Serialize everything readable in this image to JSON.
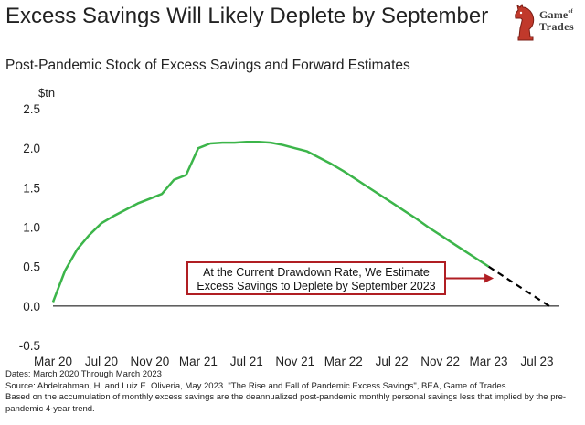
{
  "header": {
    "title": "Excess Savings Will Likely Deplete by September",
    "logo_line1": "Game",
    "logo_of": "of",
    "logo_line2": "Trades"
  },
  "chart_data": {
    "type": "line",
    "title": "Post-Pandemic Stock of Excess Savings and Forward Estimates",
    "ylabel": "$tn",
    "xlabel": "",
    "ylim": [
      -0.5,
      2.5
    ],
    "yticks": [
      -0.5,
      0.0,
      0.5,
      1.0,
      1.5,
      2.0,
      2.5
    ],
    "ytick_labels": [
      "-0.5",
      "0.0",
      "0.5",
      "1.0",
      "1.5",
      "2.0",
      "2.5"
    ],
    "xlim": [
      0,
      42
    ],
    "xticks": [
      0,
      4,
      8,
      12,
      16,
      20,
      24,
      28,
      32,
      36,
      40
    ],
    "xtick_labels": [
      "Mar 20",
      "Jul 20",
      "Nov 20",
      "Mar 21",
      "Jul 21",
      "Nov 21",
      "Mar 22",
      "Jul 22",
      "Nov 22",
      "Mar 23",
      "Jul 23"
    ],
    "grid": false,
    "series": [
      {
        "name": "Stock of excess savings",
        "style": "solid",
        "color": "#3cb54a",
        "x": [
          0,
          1,
          2,
          3,
          4,
          5,
          6,
          7,
          8,
          9,
          10,
          11,
          12,
          13,
          14,
          15,
          16,
          17,
          18,
          19,
          20,
          21,
          22,
          23,
          24,
          25,
          26,
          27,
          28,
          29,
          30,
          31,
          32,
          33,
          34,
          35,
          36
        ],
        "values": [
          0.05,
          0.45,
          0.72,
          0.9,
          1.05,
          1.14,
          1.22,
          1.3,
          1.36,
          1.42,
          1.6,
          1.66,
          2.0,
          2.06,
          2.07,
          2.07,
          2.08,
          2.08,
          2.07,
          2.04,
          2.0,
          1.96,
          1.88,
          1.8,
          1.71,
          1.61,
          1.51,
          1.41,
          1.31,
          1.21,
          1.11,
          1.0,
          0.9,
          0.8,
          0.7,
          0.6,
          0.5
        ]
      },
      {
        "name": "Forward estimate",
        "style": "dashed",
        "color": "#000000",
        "x": [
          36,
          37,
          38,
          39,
          40,
          41
        ],
        "values": [
          0.5,
          0.4,
          0.3,
          0.2,
          0.1,
          0.0
        ]
      }
    ],
    "annotation": {
      "line1": "At the Current Drawdown Rate, We Estimate",
      "line2": "Excess Savings to Deplete  by September 2023",
      "border_color": "#b01e23",
      "arrow_to": [
        34,
        0.7
      ]
    }
  },
  "footer": {
    "dates": "Dates: March 2020 Through  March 2023",
    "source": "Source: Abdelrahman, H. and Luiz E. Oliveria, May 2023.  \"The Rise and Fall of Pandemic Excess Savings\", BEA, Game of Trades.",
    "note": "Based on the accumulation of monthly excess savings are the deannualized post-pandemic monthly personal savings less that implied by the pre-pandemic 4-year trend."
  }
}
